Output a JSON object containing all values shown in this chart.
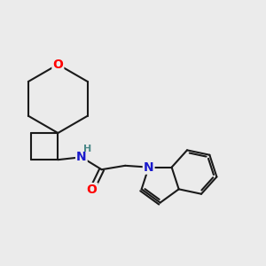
{
  "background_color": "#ebebeb",
  "bond_color": "#1a1a1a",
  "bond_width": 1.5,
  "atom_colors": {
    "O": "#ff0000",
    "N_indole": "#1a1acc",
    "N_amide": "#1a1acc",
    "H": "#4a8888"
  },
  "font_size_atoms": 10,
  "font_size_H": 8
}
